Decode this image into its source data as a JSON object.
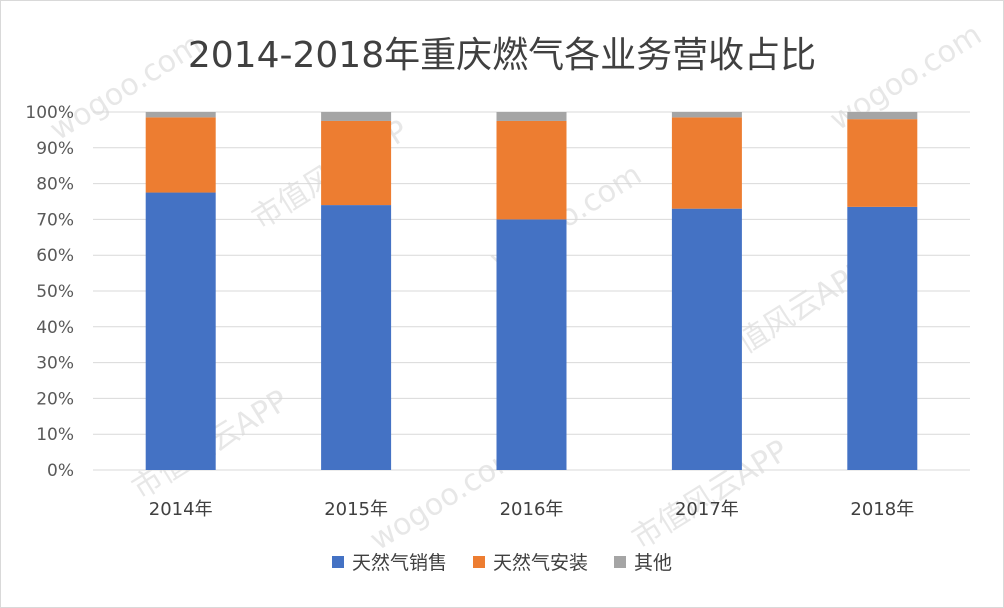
{
  "chart_data": {
    "type": "bar",
    "stacked": true,
    "title": "2014-2018年重庆燃气各业务营收占比",
    "categories": [
      "2014年",
      "2015年",
      "2016年",
      "2017年",
      "2018年"
    ],
    "series": [
      {
        "name": "天然气销售",
        "values": [
          77.5,
          74,
          70,
          73,
          73.5
        ],
        "color": "#4472C4"
      },
      {
        "name": "天然气安装",
        "values": [
          21,
          23.5,
          27.5,
          25.5,
          24.5
        ],
        "color": "#ED7D31"
      },
      {
        "name": "其他",
        "values": [
          1.5,
          2.5,
          2.5,
          1.5,
          2
        ],
        "color": "#A5A5A5"
      }
    ],
    "yticks": [
      "0%",
      "10%",
      "20%",
      "30%",
      "40%",
      "50%",
      "60%",
      "70%",
      "80%",
      "90%",
      "100%"
    ],
    "ylim": [
      0,
      100
    ],
    "grid": true,
    "legend": "bottom"
  },
  "watermarks": [
    "wogoo.com",
    "市值风云APP"
  ]
}
